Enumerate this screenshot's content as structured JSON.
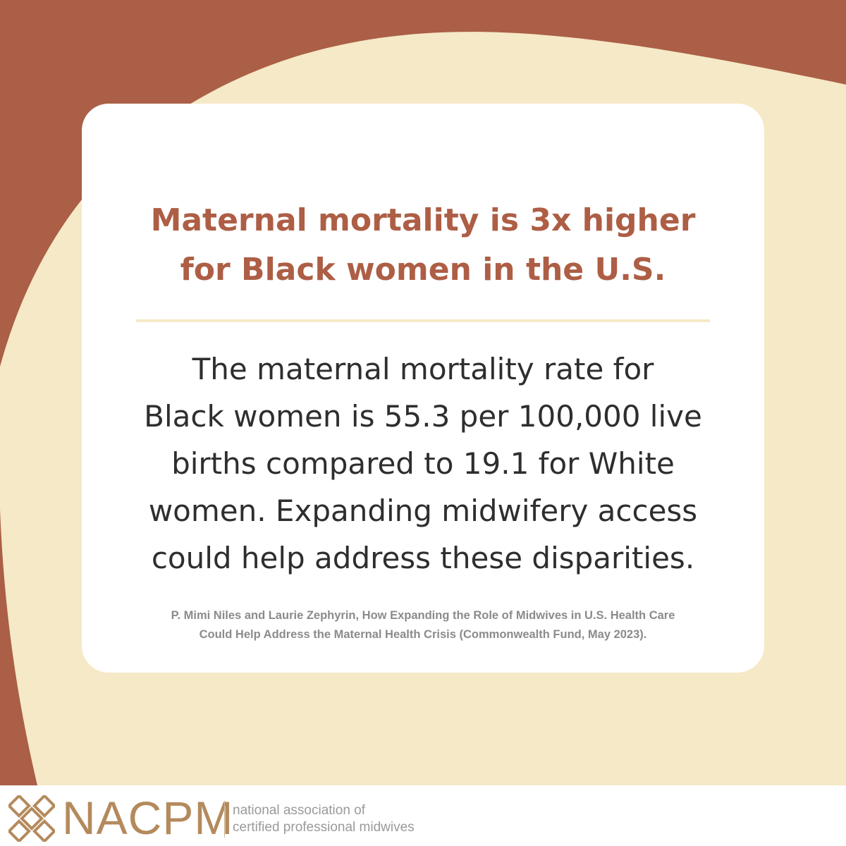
{
  "colors": {
    "terracotta": "#ab5f46",
    "cream": "#f5e9c7",
    "headline": "#ad5e45",
    "body_text": "#2e2e2e",
    "citation": "#8b8b8b",
    "logo_gold": "#b48a5c"
  },
  "headline": {
    "lines": [
      "Maternal mortality is 3x higher",
      "for Black women in the U.S."
    ]
  },
  "body": {
    "lines": [
      "The maternal mortality rate for",
      "Black women is 55.3 per 100,000 live",
      "births compared to 19.1 for White",
      "women. Expanding midwifery access",
      "could help address these disparities."
    ]
  },
  "citation": {
    "lines": [
      "P. Mimi Niles and Laurie Zephyrin, How Expanding the Role of Midwives in U.S. Health Care",
      "Could Help Address the Maternal Health Crisis (Commonwealth Fund, May 2023)."
    ]
  },
  "footer": {
    "logo_icon": "nacpm-knot-icon",
    "logo_text": "NACPM",
    "tagline_lines": [
      "national association of",
      "certified professional midwives"
    ]
  }
}
